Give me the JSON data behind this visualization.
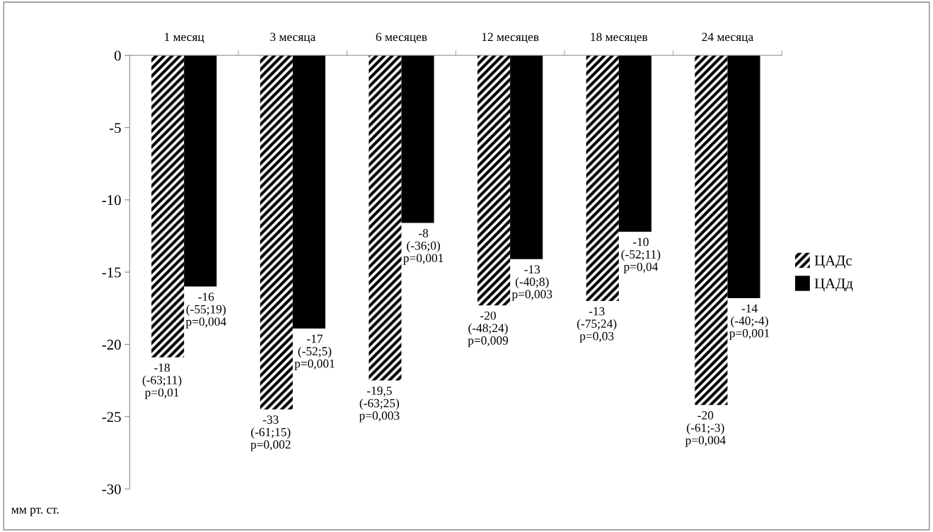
{
  "chart_data": {
    "type": "bar",
    "categories": [
      "1 месяц",
      "3 месяца",
      "6 месяцев",
      "12 месяцев",
      "18 месяцев",
      "24 месяца"
    ],
    "series": [
      {
        "name": "ЦАДс",
        "color": "#000000",
        "values": [
          -20.9,
          -24.5,
          -22.5,
          -17.3,
          -17.0,
          -24.2
        ]
      },
      {
        "name": "ЦАДд",
        "color": "#000000",
        "values": [
          -16.0,
          -18.9,
          -11.6,
          -14.1,
          -12.2,
          -16.8
        ]
      }
    ],
    "annotations": [
      "-18\n(-63;11)\np=0,01",
      "-33\n(-61;15)\np=0,002",
      "-19,5\n(-63;25)\np=0,003",
      "-20\n(-48;24)\np=0,009",
      "-13\n(-75;24)\np=0,03",
      "-20\n(-61;-3)\np=0,004",
      "-16\n(-55;19)\np=0,004",
      "-17\n(-52;5)\np=0,001",
      "-8\n(-36;0)\np=0,001",
      "-13\n(-40;8)\np=0,003",
      "-10\n(-52;11)\np=0,04",
      "-14\n(-40;-4)\np=0,001"
    ],
    "ylim": [
      -30,
      0
    ],
    "yticks": [
      -30,
      -25,
      -20,
      -15,
      -10,
      -5,
      0
    ],
    "ylabel": "мм рт. ст.",
    "legend": "right",
    "grid": false
  }
}
